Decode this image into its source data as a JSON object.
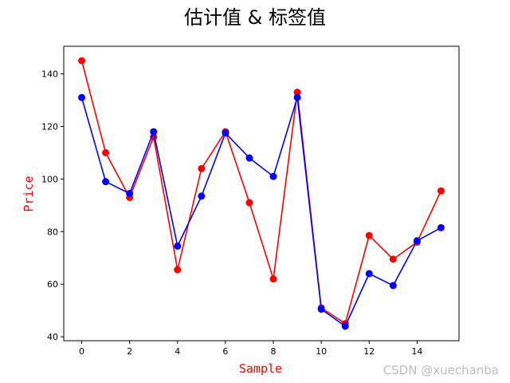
{
  "chart_data": {
    "type": "line",
    "title": "估计值 & 标签值",
    "xlabel": "Sample",
    "ylabel": "Price",
    "xlim": [
      -0.75,
      15.75
    ],
    "ylim": [
      38.5,
      150.5
    ],
    "x_ticks": [
      0,
      2,
      4,
      6,
      8,
      10,
      12,
      14
    ],
    "y_ticks": [
      40,
      60,
      80,
      100,
      120,
      140
    ],
    "grid": false,
    "x": [
      0,
      1,
      2,
      3,
      4,
      5,
      6,
      7,
      8,
      9,
      10,
      11,
      12,
      13,
      14,
      15
    ],
    "series": [
      {
        "color": "#ff0000",
        "marker": "circle",
        "values": [
          145,
          110,
          93,
          116,
          65.5,
          104,
          118,
          91,
          62,
          133,
          51,
          45,
          78.5,
          69.5,
          76,
          95.5
        ]
      },
      {
        "color": "#0000ff",
        "marker": "circle",
        "values": [
          131,
          99,
          94.5,
          118,
          74.5,
          93.5,
          117.5,
          108,
          101,
          131,
          50.5,
          44,
          64,
          59.5,
          76.5,
          81.5
        ]
      }
    ]
  },
  "watermark": "CSDN @xuechanba"
}
